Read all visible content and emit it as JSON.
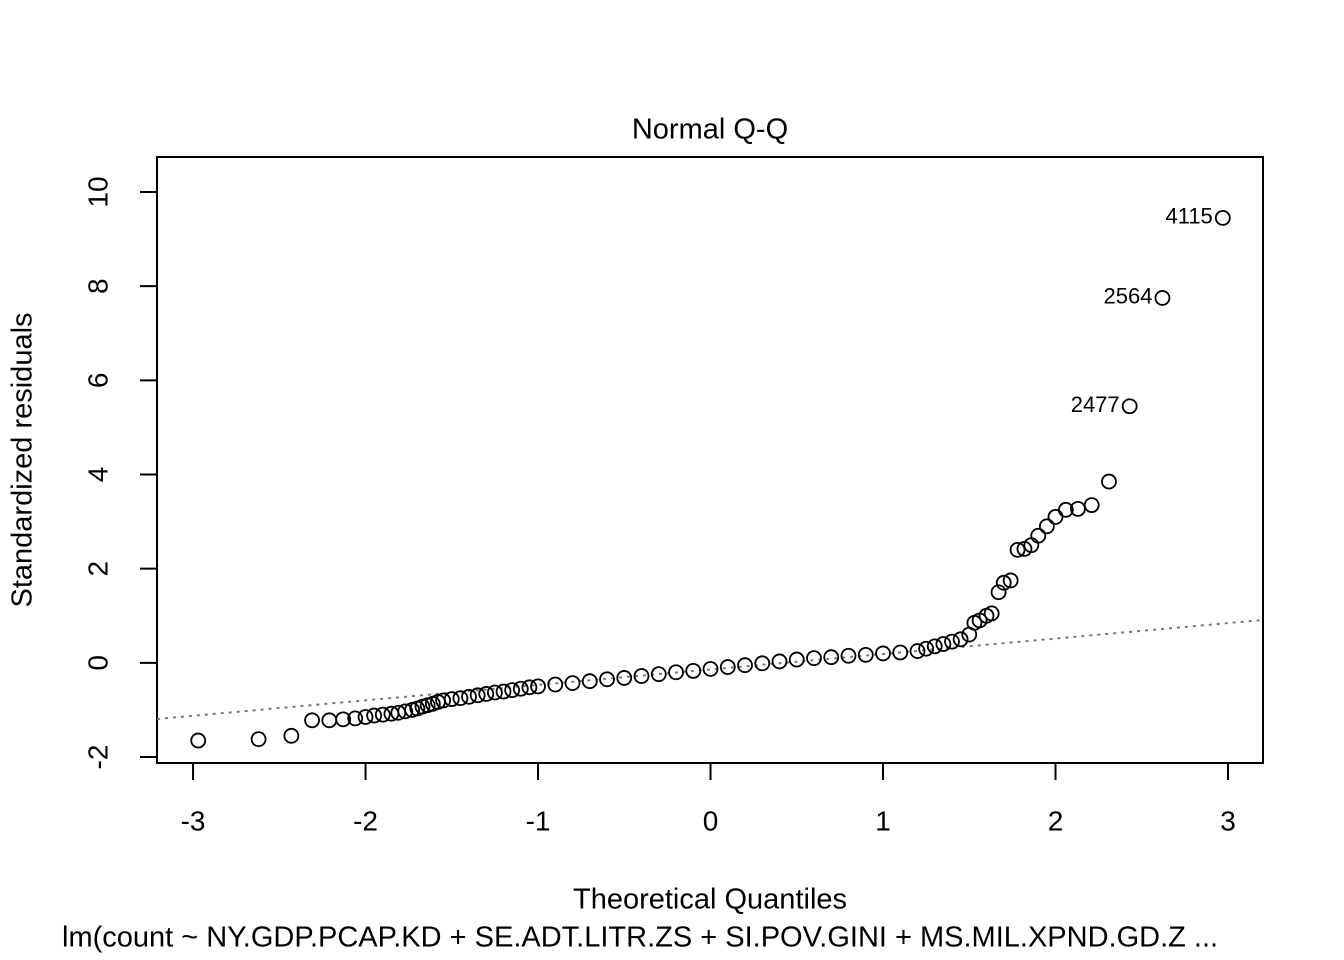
{
  "chart_data": {
    "type": "scatter",
    "title": "Normal Q-Q",
    "xlabel": "Theoretical Quantiles",
    "ylabel": "Standardized residuals",
    "subtitle": "lm(count ~ NY.GDP.PCAP.KD + SE.ADT.LITR.ZS + SI.POV.GINI + MS.MIL.XPND.GD.Z ...",
    "x": [
      -2.97,
      -2.62,
      -2.43,
      -2.31,
      -2.21,
      -2.13,
      -2.06,
      -2.0,
      -1.95,
      -1.9,
      -1.85,
      -1.81,
      -1.77,
      -1.73,
      -1.7,
      -1.67,
      -1.64,
      -1.61,
      -1.58,
      -1.55,
      -1.5,
      -1.45,
      -1.4,
      -1.35,
      -1.3,
      -1.25,
      -1.2,
      -1.15,
      -1.1,
      -1.05,
      -1.0,
      -0.9,
      -0.8,
      -0.7,
      -0.6,
      -0.5,
      -0.4,
      -0.3,
      -0.2,
      -0.1,
      0,
      0.1,
      0.2,
      0.3,
      0.4,
      0.5,
      0.6,
      0.7,
      0.8,
      0.9,
      1.0,
      1.1,
      1.2,
      1.25,
      1.3,
      1.35,
      1.4,
      1.45,
      1.5,
      1.53,
      1.56,
      1.6,
      1.63,
      1.67,
      1.7,
      1.74,
      1.78,
      1.82,
      1.86,
      1.9,
      1.95,
      2.0,
      2.06,
      2.13,
      2.21,
      2.31,
      2.43,
      2.62,
      2.97
    ],
    "values": [
      -1.65,
      -1.62,
      -1.55,
      -1.22,
      -1.22,
      -1.2,
      -1.18,
      -1.15,
      -1.12,
      -1.1,
      -1.08,
      -1.06,
      -1.03,
      -1.0,
      -0.97,
      -0.93,
      -0.9,
      -0.87,
      -0.83,
      -0.8,
      -0.77,
      -0.75,
      -0.72,
      -0.69,
      -0.66,
      -0.63,
      -0.61,
      -0.58,
      -0.55,
      -0.52,
      -0.5,
      -0.46,
      -0.43,
      -0.39,
      -0.35,
      -0.32,
      -0.28,
      -0.24,
      -0.2,
      -0.17,
      -0.13,
      -0.09,
      -0.05,
      -0.01,
      0.03,
      0.07,
      0.1,
      0.12,
      0.15,
      0.17,
      0.2,
      0.22,
      0.25,
      0.3,
      0.35,
      0.4,
      0.45,
      0.5,
      0.6,
      0.85,
      0.9,
      1.0,
      1.05,
      1.5,
      1.7,
      1.75,
      2.4,
      2.42,
      2.5,
      2.7,
      2.9,
      3.1,
      3.25,
      3.27,
      3.35,
      3.85,
      5.45,
      7.75,
      9.45
    ],
    "color": "#000000",
    "annotations": [
      {
        "text": "4115",
        "x": 2.97,
        "y": 9.45
      },
      {
        "text": "2564",
        "x": 2.62,
        "y": 7.75
      },
      {
        "text": "2477",
        "x": 2.43,
        "y": 5.45
      }
    ],
    "qq_line": {
      "intercept": -0.14,
      "slope": 0.328,
      "color": "#777777"
    },
    "xlim": [
      -3.209,
      3.203
    ],
    "ylim": [
      -2.127,
      10.743
    ],
    "xticks": [
      -3,
      -2,
      -1,
      0,
      1,
      2,
      3
    ],
    "yticks": [
      -2,
      0,
      2,
      4,
      6,
      8,
      10
    ],
    "grid": false
  }
}
